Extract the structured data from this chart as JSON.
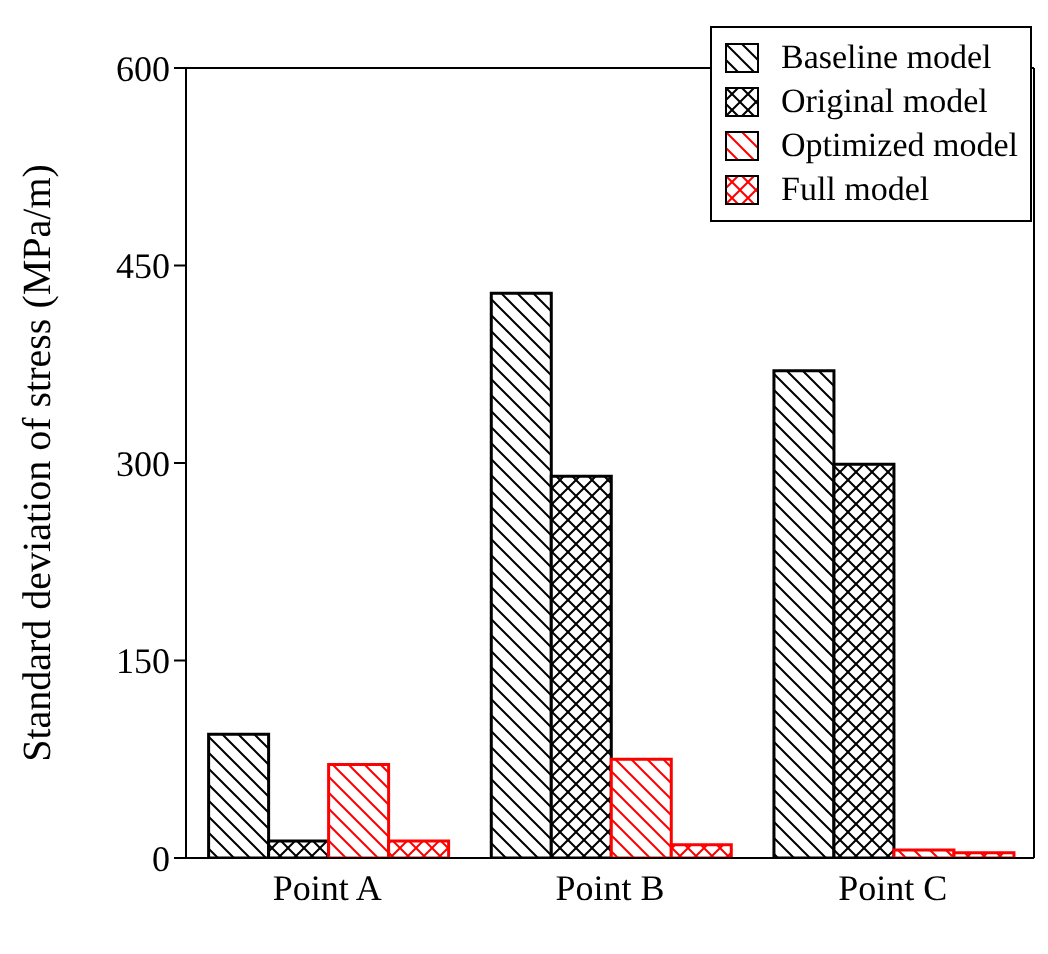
{
  "chart_data": {
    "type": "bar",
    "ylabel": "Standard deviation of stress (MPa/m)",
    "categories": [
      "Point A",
      "Point B",
      "Point C"
    ],
    "series": [
      {
        "name": "Baseline model",
        "color": "#000000",
        "values": [
          94,
          429,
          370
        ]
      },
      {
        "name": "Original model",
        "color": "#000000",
        "values": [
          13,
          290,
          299
        ]
      },
      {
        "name": "Optimized model",
        "color": "#ff0000",
        "values": [
          71,
          75,
          6
        ]
      },
      {
        "name": "Full model",
        "color": "#ff0000",
        "values": [
          13,
          10,
          4
        ]
      }
    ],
    "ylim": [
      0,
      600
    ],
    "yticks": [
      0,
      150,
      300,
      450,
      600
    ],
    "grid": false,
    "legend": "top right"
  }
}
